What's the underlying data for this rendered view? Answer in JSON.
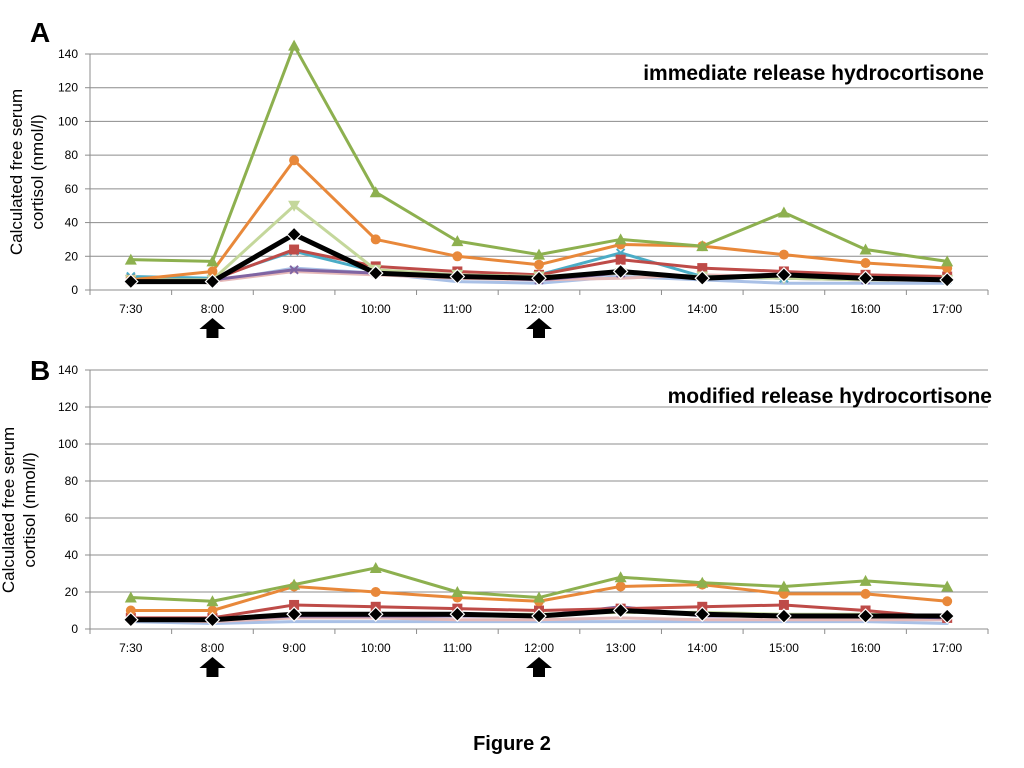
{
  "figure_caption": "Figure 2",
  "colors": {
    "green": "#8DB04F",
    "orange": "#E8883A",
    "lightgreen": "#C4D79B",
    "teal": "#4BACC6",
    "red": "#BE4B48",
    "purple": "#8064A2",
    "pink": "#E6B9B8",
    "lightblue": "#A9C0E6",
    "black": "#000000"
  },
  "chart_data": [
    {
      "panel": "A",
      "type": "line",
      "title": "immediate release hydrocortisone",
      "ylabel_lines": [
        "Calculated free serum",
        "cortisol (nmol/l)"
      ],
      "categories": [
        "7:30",
        "8:00",
        "9:00",
        "10:00",
        "11:00",
        "12:00",
        "13:00",
        "14:00",
        "15:00",
        "16:00",
        "17:00"
      ],
      "ylim": [
        0,
        140
      ],
      "yticks": [
        0,
        20,
        40,
        60,
        80,
        100,
        120,
        140
      ],
      "grid": true,
      "dose_arrows_at": [
        "8:00",
        "12:00"
      ],
      "series": [
        {
          "color": "lightblue",
          "marker": "none",
          "values": [
            5,
            5,
            13,
            10,
            5,
            4,
            8,
            6,
            4,
            4,
            4
          ]
        },
        {
          "color": "pink",
          "marker": "none",
          "values": [
            5,
            5,
            11,
            9,
            7,
            6,
            7,
            9,
            8,
            7,
            6
          ]
        },
        {
          "color": "purple",
          "marker": "x",
          "values": [
            7,
            6,
            12,
            10,
            8,
            6,
            10,
            8,
            7,
            6,
            6
          ]
        },
        {
          "color": "teal",
          "marker": "x",
          "values": [
            8,
            7,
            23,
            11,
            8,
            9,
            22,
            8,
            7,
            7,
            6
          ]
        },
        {
          "color": "red",
          "marker": "square",
          "values": [
            6,
            6,
            24,
            14,
            11,
            9,
            18,
            13,
            11,
            9,
            8
          ]
        },
        {
          "color": "lightgreen",
          "marker": "triangle-down",
          "values": [
            6,
            6,
            50,
            12,
            9,
            8,
            10,
            8,
            7,
            6,
            6
          ]
        },
        {
          "color": "orange",
          "marker": "circle",
          "values": [
            6,
            11,
            77,
            30,
            20,
            15,
            27,
            26,
            21,
            16,
            13
          ]
        },
        {
          "color": "green",
          "marker": "triangle",
          "values": [
            18,
            17,
            145,
            58,
            29,
            21,
            30,
            26,
            46,
            24,
            17
          ]
        },
        {
          "color": "black",
          "marker": "diamond",
          "width": 5,
          "values": [
            5,
            5,
            33,
            10,
            8,
            7,
            11,
            7,
            9,
            7,
            6
          ]
        }
      ]
    },
    {
      "panel": "B",
      "type": "line",
      "title": "modified release hydrocortisone",
      "ylabel_lines": [
        "Calculated free serum",
        "cortisol (nmol/l)"
      ],
      "categories": [
        "7:30",
        "8:00",
        "9:00",
        "10:00",
        "11:00",
        "12:00",
        "13:00",
        "14:00",
        "15:00",
        "16:00",
        "17:00"
      ],
      "ylim": [
        0,
        140
      ],
      "yticks": [
        0,
        20,
        40,
        60,
        80,
        100,
        120,
        140
      ],
      "grid": true,
      "dose_arrows_at": [
        "8:00",
        "12:00"
      ],
      "series": [
        {
          "color": "lightblue",
          "marker": "none",
          "values": [
            4,
            3,
            4,
            4,
            4,
            4,
            4,
            4,
            4,
            4,
            3
          ]
        },
        {
          "color": "pink",
          "marker": "none",
          "values": [
            5,
            4,
            6,
            6,
            5,
            5,
            6,
            5,
            5,
            5,
            5
          ]
        },
        {
          "color": "purple",
          "marker": "none",
          "values": [
            6,
            5,
            7,
            7,
            7,
            7,
            12,
            7,
            7,
            7,
            6
          ]
        },
        {
          "color": "lightgreen",
          "marker": "none",
          "values": [
            6,
            5,
            8,
            8,
            8,
            8,
            9,
            9,
            8,
            8,
            7
          ]
        },
        {
          "color": "red",
          "marker": "square",
          "values": [
            6,
            6,
            13,
            12,
            11,
            10,
            11,
            12,
            13,
            10,
            6
          ]
        },
        {
          "color": "orange",
          "marker": "circle",
          "values": [
            10,
            10,
            23,
            20,
            17,
            15,
            23,
            24,
            19,
            19,
            15
          ]
        },
        {
          "color": "green",
          "marker": "triangle",
          "values": [
            17,
            15,
            24,
            33,
            20,
            17,
            28,
            25,
            23,
            26,
            23
          ]
        },
        {
          "color": "black",
          "marker": "diamond",
          "width": 5,
          "values": [
            5,
            5,
            8,
            8,
            8,
            7,
            10,
            8,
            7,
            7,
            7
          ]
        }
      ]
    }
  ]
}
